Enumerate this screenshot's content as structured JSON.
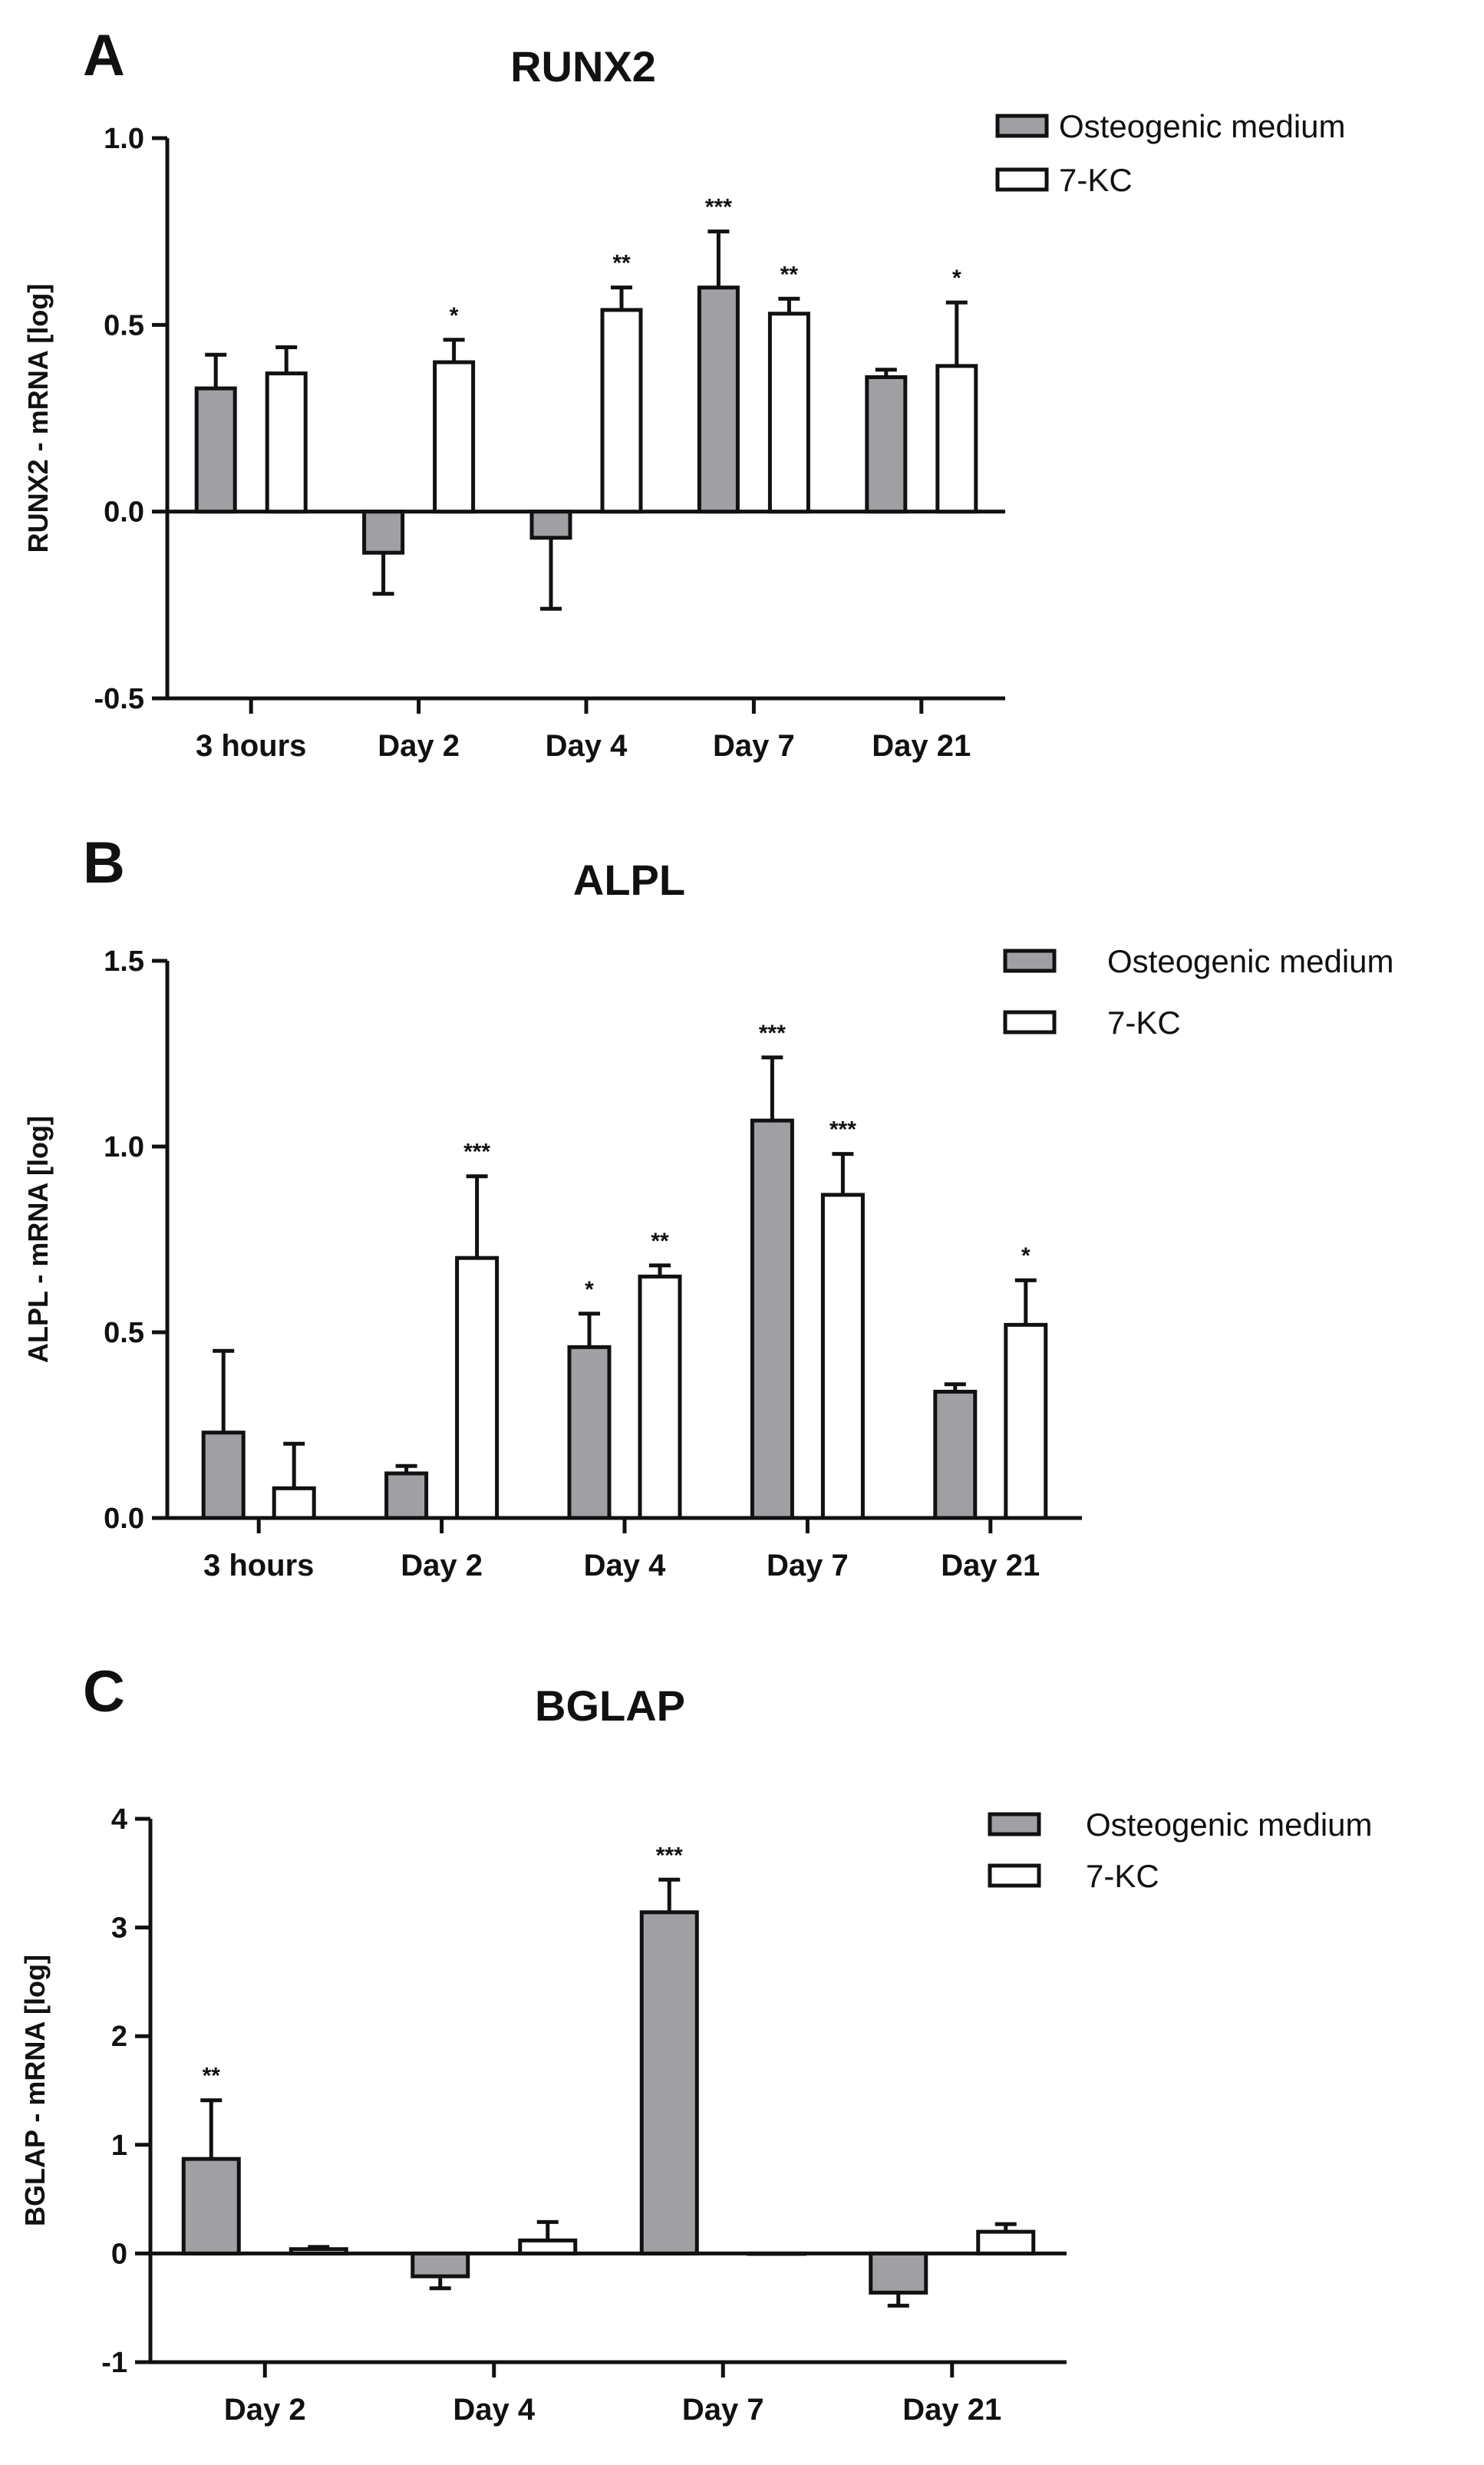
{
  "figure": {
    "panels": [
      "A",
      "B",
      "C"
    ]
  },
  "chart_data": [
    {
      "type": "bar",
      "panel": "A",
      "title": "RUNX2",
      "ylabel": "RUNX2 - mRNA [log]",
      "xlabel": "",
      "ylim": [
        -0.5,
        1.0
      ],
      "yticks": [
        -0.5,
        0.0,
        0.5,
        1.0
      ],
      "ytick_labels": [
        "-0.5",
        "0.0",
        "0.5",
        "1.0"
      ],
      "categories": [
        "3 hours",
        "Day 2",
        "Day 4",
        "Day 7",
        "Day 21"
      ],
      "legend_position": "top-right",
      "series": [
        {
          "name": "Osteogenic medium",
          "color": "#a0a0a4",
          "values": [
            0.33,
            -0.11,
            -0.07,
            0.6,
            0.36
          ],
          "errors": [
            0.09,
            0.11,
            0.19,
            0.15,
            0.02
          ],
          "significance": [
            "",
            "",
            "",
            "***",
            ""
          ]
        },
        {
          "name": "7-KC",
          "color": "#ffffff",
          "values": [
            0.37,
            0.4,
            0.54,
            0.53,
            0.39
          ],
          "errors": [
            0.07,
            0.06,
            0.06,
            0.04,
            0.17
          ],
          "significance": [
            "",
            "*",
            "**",
            "**",
            "*"
          ]
        }
      ]
    },
    {
      "type": "bar",
      "panel": "B",
      "title": "ALPL",
      "ylabel": "ALPL - mRNA [log]",
      "xlabel": "",
      "ylim": [
        0.0,
        1.5
      ],
      "yticks": [
        0.0,
        0.5,
        1.0,
        1.5
      ],
      "ytick_labels": [
        "0.0",
        "0.5",
        "1.0",
        "1.5"
      ],
      "categories": [
        "3 hours",
        "Day 2",
        "Day 4",
        "Day 7",
        "Day 21"
      ],
      "legend_position": "top-right",
      "series": [
        {
          "name": "Osteogenic medium",
          "color": "#a0a0a4",
          "values": [
            0.23,
            0.12,
            0.46,
            1.07,
            0.34
          ],
          "errors": [
            0.22,
            0.02,
            0.09,
            0.17,
            0.02
          ],
          "significance": [
            "",
            "",
            "*",
            "***",
            ""
          ]
        },
        {
          "name": "7-KC",
          "color": "#ffffff",
          "values": [
            0.08,
            0.7,
            0.65,
            0.87,
            0.52
          ],
          "errors": [
            0.12,
            0.22,
            0.03,
            0.11,
            0.12
          ],
          "significance": [
            "",
            "***",
            "**",
            "***",
            "*"
          ]
        }
      ]
    },
    {
      "type": "bar",
      "panel": "C",
      "title": "BGLAP",
      "ylabel": "BGLAP - mRNA [log]",
      "xlabel": "",
      "ylim": [
        -1,
        4
      ],
      "yticks": [
        -1,
        0,
        1,
        2,
        3,
        4
      ],
      "ytick_labels": [
        "-1",
        "0",
        "1",
        "2",
        "3",
        "4"
      ],
      "categories": [
        "Day 2",
        "Day 4",
        "Day 7",
        "Day 21"
      ],
      "legend_position": "top-right",
      "series": [
        {
          "name": "Osteogenic medium",
          "color": "#a0a0a4",
          "values": [
            0.87,
            -0.21,
            3.14,
            -0.36
          ],
          "errors": [
            0.54,
            0.11,
            0.3,
            0.12
          ],
          "significance": [
            "**",
            "",
            "***",
            ""
          ]
        },
        {
          "name": "7-KC",
          "color": "#ffffff",
          "values": [
            0.04,
            0.12,
            0.0,
            0.2
          ],
          "errors": [
            0.02,
            0.17,
            0.0,
            0.07
          ],
          "significance": [
            "",
            "",
            "",
            ""
          ]
        }
      ]
    }
  ]
}
